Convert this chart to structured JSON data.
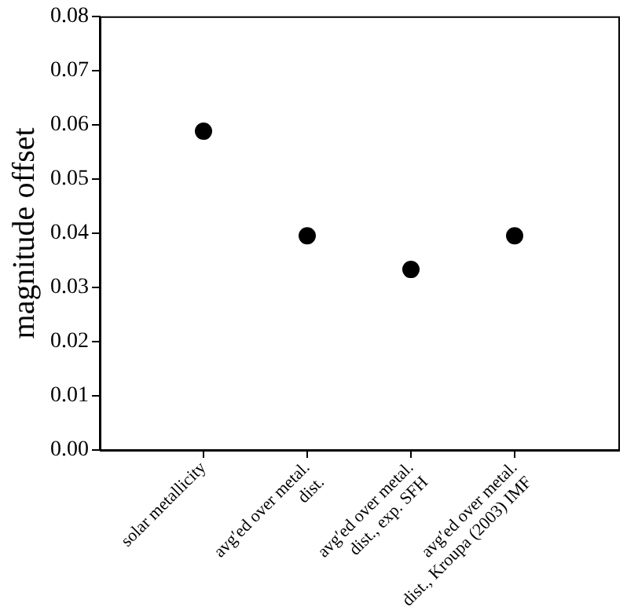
{
  "chart_data": {
    "type": "scatter",
    "ylabel": "magnitude offset",
    "categories": [
      "solar metallicity",
      "avg′ed over metal.\ndist.",
      "avg′ed over metal.\ndist., exp. SFH",
      "avg′ed over metal.\ndist., Kroupa (2003) IMF"
    ],
    "series": [
      {
        "color": "#000000",
        "values": [
          0.0588,
          0.0395,
          0.0333,
          0.0395
        ]
      }
    ],
    "ylim": [
      0,
      0.08
    ],
    "yticks": [
      {
        "value": 0,
        "label": "0.00"
      },
      {
        "value": 0.01,
        "label": "0.01"
      },
      {
        "value": 0.02,
        "label": "0.02"
      },
      {
        "value": 0.03,
        "label": "0.03"
      },
      {
        "value": 0.04,
        "label": "0.04"
      },
      {
        "value": 0.05,
        "label": "0.05"
      },
      {
        "value": 0.06,
        "label": "0.06"
      },
      {
        "value": 0.07,
        "label": "0.07"
      },
      {
        "value": 0.08,
        "label": "0.08"
      }
    ],
    "grid": false,
    "legend": false,
    "marker": "circle"
  }
}
